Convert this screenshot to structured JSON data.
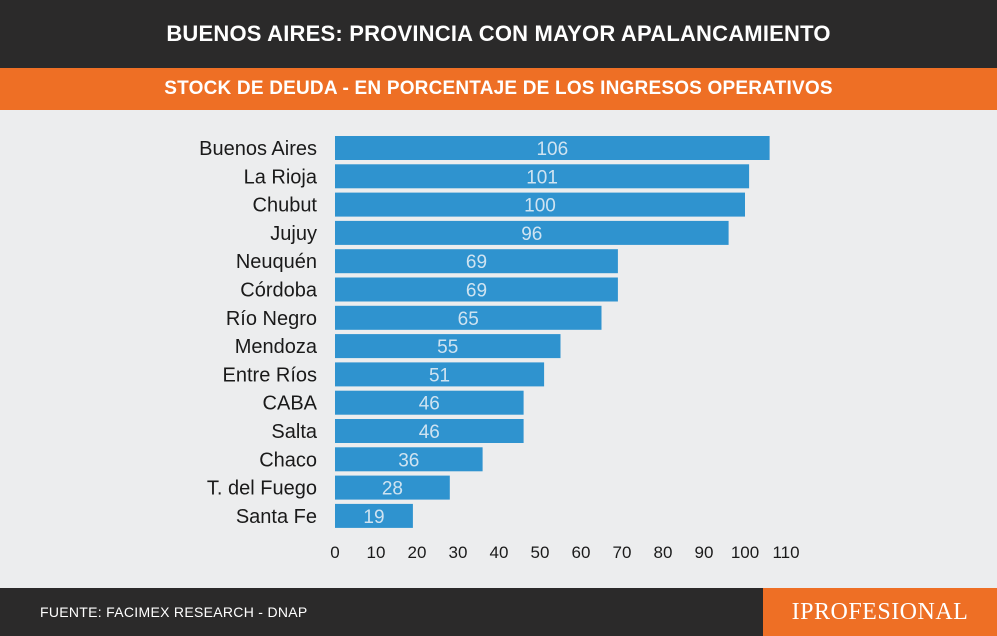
{
  "header": {
    "title": "BUENOS AIRES: PROVINCIA CON MAYOR APALANCAMIENTO",
    "subtitle": "STOCK DE DEUDA - EN PORCENTAJE DE LOS INGRESOS OPERATIVOS"
  },
  "chart_data": {
    "type": "bar",
    "orientation": "horizontal",
    "categories": [
      "Buenos Aires",
      "La Rioja",
      "Chubut",
      "Jujuy",
      "Neuquén",
      "Córdoba",
      "Río Negro",
      "Mendoza",
      "Entre Ríos",
      "CABA",
      "Salta",
      "Chaco",
      "T. del Fuego",
      "Santa Fe"
    ],
    "values": [
      106,
      101,
      100,
      96,
      69,
      69,
      65,
      55,
      51,
      46,
      46,
      36,
      28,
      19
    ],
    "xticks": [
      0,
      10,
      20,
      30,
      40,
      50,
      60,
      70,
      80,
      90,
      100,
      110
    ],
    "xlim": [
      0,
      110
    ],
    "bar_color": "#2f93cf",
    "label_color": "#cfe3f1",
    "grid": false,
    "legend": false
  },
  "footer": {
    "source": "FUENTE: FACIMEX RESEARCH - DNAP",
    "brand": "IPROFESIONAL"
  },
  "colors": {
    "header_bg": "#2b2a2a",
    "accent": "#ee6f25",
    "background": "#ecedee"
  }
}
